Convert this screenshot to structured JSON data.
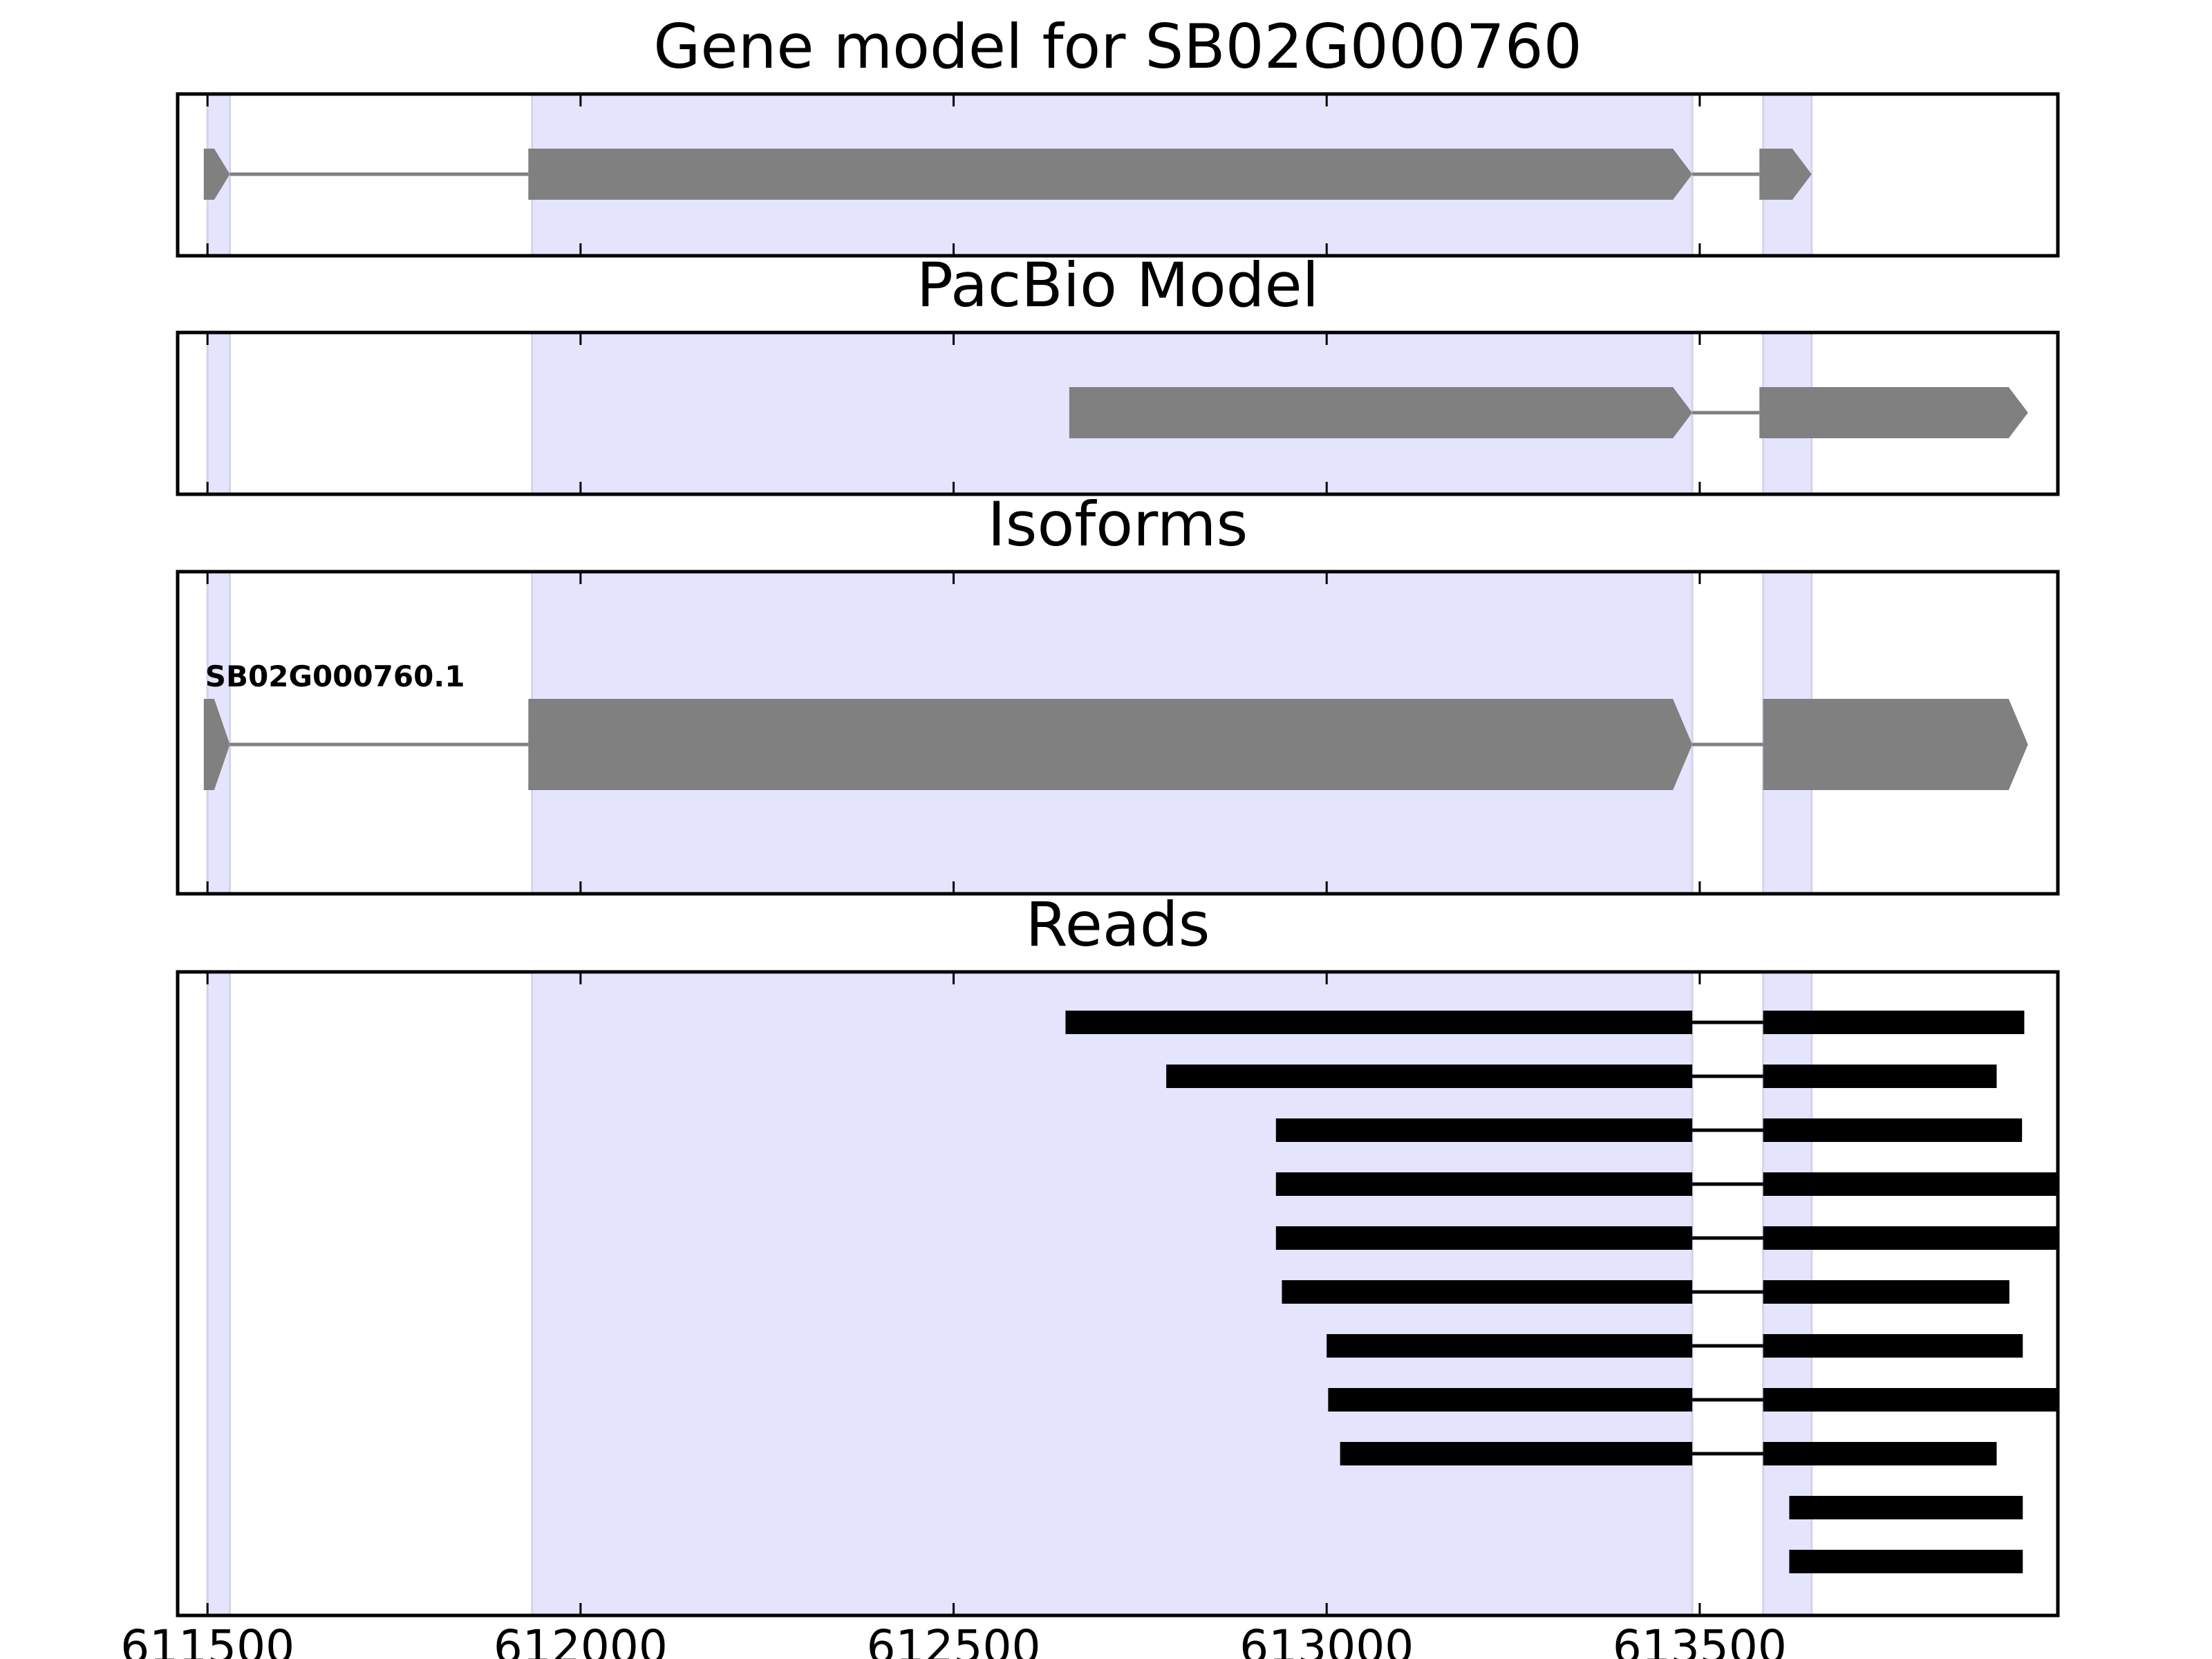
{
  "chart_data": {
    "type": "gene-track",
    "xlim": [
      611460,
      613980
    ],
    "xticks": [
      611500,
      612000,
      612500,
      613000,
      613500
    ],
    "xtick_labels": [
      "611500",
      "612000",
      "612500",
      "613000",
      "613500"
    ],
    "highlight_regions": [
      [
        611500,
        611530
      ],
      [
        611935,
        613490
      ],
      [
        613585,
        613650
      ]
    ],
    "colors": {
      "highlight": "#e4e4fd",
      "highlight_edge": "#d3d3ee",
      "gene": "#808080",
      "read": "#000000",
      "axes": "#000000"
    },
    "panels": [
      {
        "title": "Gene model for SB02G000760",
        "kind": "model",
        "features": [
          {
            "exons": [
              [
                611495,
                611530
              ],
              [
                611930,
                613490
              ],
              [
                613580,
                613650
              ]
            ],
            "strand": "+"
          }
        ]
      },
      {
        "title": "PacBio Model",
        "kind": "model",
        "features": [
          {
            "exons": [
              [
                612655,
                613490
              ],
              [
                613580,
                613940
              ]
            ],
            "strand": "+"
          }
        ]
      },
      {
        "title": "Isoforms",
        "kind": "isoform",
        "features": [
          {
            "label": "SB02G000760.1",
            "exons": [
              [
                611495,
                611530
              ],
              [
                611930,
                613490
              ],
              [
                613585,
                613940
              ]
            ],
            "strand": "+"
          }
        ]
      },
      {
        "title": "Reads",
        "kind": "reads",
        "features": [
          {
            "exons": [
              [
                612650,
                613490
              ],
              [
                613585,
                613935
              ]
            ]
          },
          {
            "exons": [
              [
                612785,
                613490
              ],
              [
                613585,
                613898
              ]
            ]
          },
          {
            "exons": [
              [
                612932,
                613490
              ],
              [
                613585,
                613932
              ]
            ]
          },
          {
            "exons": [
              [
                612932,
                613490
              ],
              [
                613585,
                613980
              ]
            ]
          },
          {
            "exons": [
              [
                612932,
                613490
              ],
              [
                613585,
                613980
              ]
            ]
          },
          {
            "exons": [
              [
                612940,
                613490
              ],
              [
                613585,
                613915
              ]
            ]
          },
          {
            "exons": [
              [
                613000,
                613490
              ],
              [
                613585,
                613933
              ]
            ]
          },
          {
            "exons": [
              [
                613002,
                613490
              ],
              [
                613585,
                613980
              ]
            ]
          },
          {
            "exons": [
              [
                613018,
                613490
              ],
              [
                613585,
                613898
              ]
            ]
          },
          {
            "exons": [
              [
                613620,
                613933
              ]
            ]
          },
          {
            "exons": [
              [
                613620,
                613933
              ]
            ]
          }
        ]
      }
    ]
  }
}
